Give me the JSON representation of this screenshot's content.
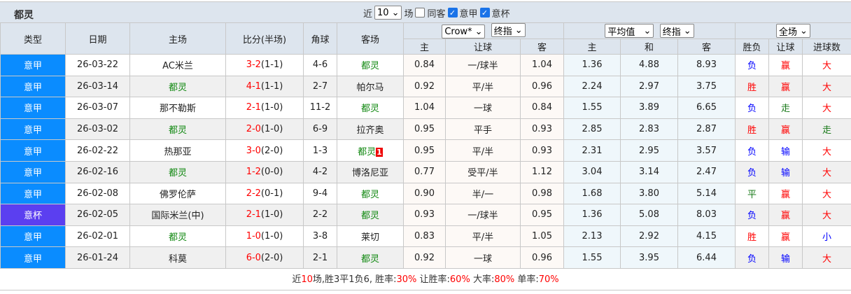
{
  "header": {
    "team": "都灵",
    "recent_label": "近",
    "recent_value": "10",
    "games_label": "场",
    "same_away_label": "同客",
    "same_away_checked": false,
    "league1_label": "意甲",
    "league1_checked": true,
    "league2_label": "意杯",
    "league2_checked": true
  },
  "columns": {
    "type": "类型",
    "date": "日期",
    "home": "主场",
    "score": "比分(半场)",
    "corner": "角球",
    "away": "客场",
    "ah_company": "Crow*",
    "ah_type": "终指",
    "eu_company": "平均值",
    "eu_type": "终指",
    "scope": "全场",
    "ah_home": "主",
    "ah_line": "让球",
    "ah_away": "客",
    "eu_home": "主",
    "eu_draw": "和",
    "eu_away": "客",
    "res_wl": "胜负",
    "res_ah": "让球",
    "res_ou": "进球数"
  },
  "colors": {
    "league": "#0a8cff",
    "cup": "#5b3ff0",
    "team": "#118811",
    "win": "#ff0000",
    "loss": "#0000ff"
  },
  "rows": [
    {
      "type": "意甲",
      "date": "26-03-22",
      "home": "AC米兰",
      "ft": "3-2",
      "ht": "(1-1)",
      "corner": "4-6",
      "away": "都灵",
      "o1": "0.84",
      "line": "一/球半",
      "o2": "1.04",
      "e1": "1.36",
      "ex": "4.88",
      "e2": "8.93",
      "wl": "负",
      "ah": "赢",
      "ou": "大"
    },
    {
      "type": "意甲",
      "date": "26-03-14",
      "home": "都灵",
      "ft": "4-1",
      "ht": "(1-1)",
      "corner": "2-7",
      "away": "帕尔马",
      "o1": "0.92",
      "line": "平/半",
      "o2": "0.96",
      "e1": "2.24",
      "ex": "2.97",
      "e2": "3.75",
      "wl": "胜",
      "ah": "赢",
      "ou": "大"
    },
    {
      "type": "意甲",
      "date": "26-03-07",
      "home": "那不勒斯",
      "ft": "2-1",
      "ht": "(1-0)",
      "corner": "11-2",
      "away": "都灵",
      "o1": "1.04",
      "line": "一球",
      "o2": "0.84",
      "e1": "1.55",
      "ex": "3.89",
      "e2": "6.65",
      "wl": "负",
      "ah": "走",
      "ou": "大"
    },
    {
      "type": "意甲",
      "date": "26-03-02",
      "home": "都灵",
      "ft": "2-0",
      "ht": "(1-0)",
      "corner": "6-9",
      "away": "拉齐奥",
      "o1": "0.95",
      "line": "平手",
      "o2": "0.93",
      "e1": "2.85",
      "ex": "2.83",
      "e2": "2.87",
      "wl": "胜",
      "ah": "赢",
      "ou": "走"
    },
    {
      "type": "意甲",
      "date": "26-02-22",
      "home": "热那亚",
      "ft": "3-0",
      "ht": "(2-0)",
      "corner": "1-3",
      "away": "都灵",
      "away_badge": "1",
      "o1": "0.95",
      "line": "平/半",
      "o2": "0.93",
      "e1": "2.31",
      "ex": "2.95",
      "e2": "3.57",
      "wl": "负",
      "ah": "输",
      "ou": "大"
    },
    {
      "type": "意甲",
      "date": "26-02-16",
      "home": "都灵",
      "ft": "1-2",
      "ht": "(0-0)",
      "corner": "4-2",
      "away": "博洛尼亚",
      "o1": "0.77",
      "line": "受平/半",
      "o2": "1.12",
      "e1": "3.04",
      "ex": "3.14",
      "e2": "2.47",
      "wl": "负",
      "ah": "输",
      "ou": "大"
    },
    {
      "type": "意甲",
      "date": "26-02-08",
      "home": "佛罗伦萨",
      "ft": "2-2",
      "ht": "(0-1)",
      "corner": "9-4",
      "away": "都灵",
      "o1": "0.90",
      "line": "半/一",
      "o2": "0.98",
      "e1": "1.68",
      "ex": "3.80",
      "e2": "5.14",
      "wl": "平",
      "ah": "赢",
      "ou": "大"
    },
    {
      "type": "意杯",
      "date": "26-02-05",
      "home": "国际米兰(中)",
      "ft": "2-1",
      "ht": "(1-0)",
      "corner": "2-2",
      "away": "都灵",
      "o1": "0.93",
      "line": "一/球半",
      "o2": "0.95",
      "e1": "1.36",
      "ex": "5.08",
      "e2": "8.03",
      "wl": "负",
      "ah": "赢",
      "ou": "大"
    },
    {
      "type": "意甲",
      "date": "26-02-01",
      "home": "都灵",
      "ft": "1-0",
      "ht": "(1-0)",
      "corner": "3-8",
      "away": "莱切",
      "o1": "0.83",
      "line": "平/半",
      "o2": "1.05",
      "e1": "2.13",
      "ex": "2.92",
      "e2": "4.15",
      "wl": "胜",
      "ah": "赢",
      "ou": "小"
    },
    {
      "type": "意甲",
      "date": "26-01-24",
      "home": "科莫",
      "ft": "6-0",
      "ht": "(2-0)",
      "corner": "2-1",
      "away": "都灵",
      "o1": "0.92",
      "line": "一球",
      "o2": "0.96",
      "e1": "1.55",
      "ex": "3.95",
      "e2": "6.44",
      "wl": "负",
      "ah": "输",
      "ou": "大"
    }
  ],
  "summary": {
    "p1": "近",
    "n": "10",
    "p2": "场,胜3平1负6, 胜率:",
    "win_rate": "30%",
    "p3": " 让胜率:",
    "ah_rate": "60%",
    "p4": " 大率:",
    "over_rate": "80%",
    "p5": " 单率:",
    "odd_rate": "70%"
  }
}
